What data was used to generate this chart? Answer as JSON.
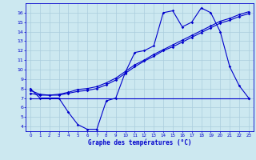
{
  "title": "Graphe des températures (°C)",
  "bg_color": "#cce8f0",
  "grid_color": "#aaccdd",
  "line_color": "#0000cc",
  "xlim": [
    -0.5,
    23.5
  ],
  "ylim": [
    3.5,
    17.0
  ],
  "xticks": [
    0,
    1,
    2,
    3,
    4,
    5,
    6,
    7,
    8,
    9,
    10,
    11,
    12,
    13,
    14,
    15,
    16,
    17,
    18,
    19,
    20,
    21,
    22,
    23
  ],
  "yticks": [
    4,
    5,
    6,
    7,
    8,
    9,
    10,
    11,
    12,
    13,
    14,
    15,
    16
  ],
  "line1_x": [
    0,
    1,
    2,
    3,
    4,
    5,
    6,
    7,
    8,
    9,
    10,
    11,
    12,
    13,
    14,
    15,
    16,
    17,
    18,
    19,
    20,
    21,
    22,
    23
  ],
  "line1_y": [
    8.0,
    7.0,
    7.0,
    7.0,
    5.5,
    4.2,
    3.7,
    3.7,
    6.7,
    7.0,
    9.7,
    11.8,
    12.0,
    12.5,
    16.0,
    16.2,
    14.5,
    15.0,
    16.5,
    16.0,
    14.0,
    10.3,
    8.3,
    7.0
  ],
  "line2_x": [
    0,
    23
  ],
  "line2_y": [
    7.0,
    7.0
  ],
  "line3_x": [
    0,
    1,
    2,
    3,
    4,
    5,
    6,
    7,
    8,
    9,
    10,
    11,
    12,
    13,
    14,
    15,
    16,
    17,
    18,
    19,
    20,
    21,
    22,
    23
  ],
  "line3_y": [
    7.5,
    7.3,
    7.3,
    7.4,
    7.6,
    7.9,
    8.0,
    8.2,
    8.6,
    9.1,
    9.8,
    10.5,
    11.0,
    11.6,
    12.1,
    12.6,
    13.1,
    13.6,
    14.1,
    14.6,
    15.1,
    15.4,
    15.8,
    16.1
  ],
  "line4_x": [
    0,
    1,
    2,
    3,
    4,
    5,
    6,
    7,
    8,
    9,
    10,
    11,
    12,
    13,
    14,
    15,
    16,
    17,
    18,
    19,
    20,
    21,
    22,
    23
  ],
  "line4_y": [
    7.8,
    7.4,
    7.3,
    7.3,
    7.5,
    7.7,
    7.8,
    8.0,
    8.4,
    8.9,
    9.6,
    10.3,
    10.9,
    11.4,
    12.0,
    12.4,
    12.9,
    13.4,
    13.9,
    14.4,
    14.9,
    15.2,
    15.6,
    15.9
  ]
}
